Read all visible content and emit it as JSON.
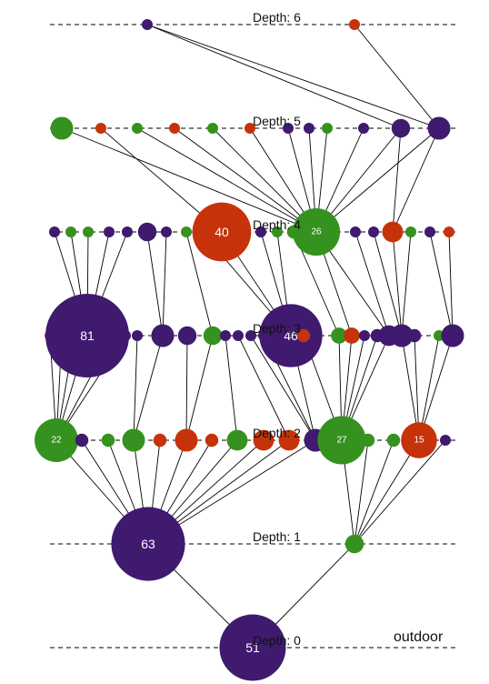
{
  "corner_label": "outdoor",
  "colors": {
    "purple": "#3f1a6e",
    "green": "#35921f",
    "red": "#c63209"
  },
  "levels": [
    {
      "label": "Depth: 0"
    },
    {
      "label": "Depth: 1"
    },
    {
      "label": "Depth: 2"
    },
    {
      "label": "Depth: 3"
    },
    {
      "label": "Depth: 4"
    },
    {
      "label": "Depth: 5"
    },
    {
      "label": "Depth: 6"
    }
  ],
  "nodes": [
    {
      "id": "d0a",
      "level": 0,
      "color": "purple",
      "size": 51,
      "label": "51"
    },
    {
      "id": "d1a",
      "level": 1,
      "color": "purple",
      "size": 63,
      "label": "63"
    },
    {
      "id": "d1b",
      "level": 1,
      "color": "green",
      "size": 4,
      "label": ""
    },
    {
      "id": "d2a",
      "level": 2,
      "color": "green",
      "size": 22,
      "label": "22"
    },
    {
      "id": "d2b",
      "level": 2,
      "color": "purple",
      "size": 2,
      "label": ""
    },
    {
      "id": "d2c",
      "level": 2,
      "color": "green",
      "size": 2,
      "label": ""
    },
    {
      "id": "d2d",
      "level": 2,
      "color": "green",
      "size": 6,
      "label": ""
    },
    {
      "id": "d2e",
      "level": 2,
      "color": "red",
      "size": 2,
      "label": ""
    },
    {
      "id": "d2f",
      "level": 2,
      "color": "red",
      "size": 6,
      "label": ""
    },
    {
      "id": "d2g",
      "level": 2,
      "color": "red",
      "size": 2,
      "label": ""
    },
    {
      "id": "d2h",
      "level": 2,
      "color": "green",
      "size": 5,
      "label": ""
    },
    {
      "id": "d2i",
      "level": 2,
      "color": "red",
      "size": 5,
      "label": ""
    },
    {
      "id": "d2j",
      "level": 2,
      "color": "red",
      "size": 5,
      "label": ""
    },
    {
      "id": "d2k",
      "level": 2,
      "color": "purple",
      "size": 6,
      "label": ""
    },
    {
      "id": "d2l",
      "level": 2,
      "color": "green",
      "size": 27,
      "label": "27"
    },
    {
      "id": "d2m",
      "level": 2,
      "color": "green",
      "size": 2,
      "label": ""
    },
    {
      "id": "d2n",
      "level": 2,
      "color": "green",
      "size": 2,
      "label": ""
    },
    {
      "id": "d2o",
      "level": 2,
      "color": "red",
      "size": 15,
      "label": "15"
    },
    {
      "id": "d2p",
      "level": 2,
      "color": "purple",
      "size": 1,
      "label": ""
    },
    {
      "id": "d3a",
      "level": 3,
      "color": "red",
      "size": 1,
      "label": ""
    },
    {
      "id": "d3b",
      "level": 3,
      "color": "red",
      "size": 1,
      "label": ""
    },
    {
      "id": "d3c",
      "level": 3,
      "color": "green",
      "size": 1,
      "label": ""
    },
    {
      "id": "d3d",
      "level": 3,
      "color": "purple",
      "size": 81,
      "label": "81"
    },
    {
      "id": "d3e",
      "level": 3,
      "color": "purple",
      "size": 1,
      "label": ""
    },
    {
      "id": "d3f",
      "level": 3,
      "color": "purple",
      "size": 1,
      "label": ""
    },
    {
      "id": "d3g",
      "level": 3,
      "color": "purple",
      "size": 1,
      "label": ""
    },
    {
      "id": "d3h",
      "level": 3,
      "color": "purple",
      "size": 6,
      "label": ""
    },
    {
      "id": "d3i",
      "level": 3,
      "color": "purple",
      "size": 4,
      "label": ""
    },
    {
      "id": "d3j",
      "level": 3,
      "color": "green",
      "size": 4,
      "label": ""
    },
    {
      "id": "d3k",
      "level": 3,
      "color": "purple",
      "size": 1,
      "label": ""
    },
    {
      "id": "d3l",
      "level": 3,
      "color": "purple",
      "size": 1,
      "label": ""
    },
    {
      "id": "d3m",
      "level": 3,
      "color": "purple",
      "size": 1,
      "label": ""
    },
    {
      "id": "d3n",
      "level": 3,
      "color": "purple",
      "size": 1,
      "label": ""
    },
    {
      "id": "d3o",
      "level": 3,
      "color": "purple",
      "size": 46,
      "label": "46"
    },
    {
      "id": "d3p",
      "level": 3,
      "color": "red",
      "size": 2,
      "label": ""
    },
    {
      "id": "d3q",
      "level": 3,
      "color": "green",
      "size": 3,
      "label": ""
    },
    {
      "id": "d3r",
      "level": 3,
      "color": "red",
      "size": 3,
      "label": ""
    },
    {
      "id": "d3s",
      "level": 3,
      "color": "purple",
      "size": 1,
      "label": ""
    },
    {
      "id": "d3t",
      "level": 3,
      "color": "purple",
      "size": 2,
      "label": ""
    },
    {
      "id": "d3u",
      "level": 3,
      "color": "purple",
      "size": 5,
      "label": ""
    },
    {
      "id": "d3v",
      "level": 3,
      "color": "purple",
      "size": 6,
      "label": ""
    },
    {
      "id": "d3w",
      "level": 3,
      "color": "purple",
      "size": 2,
      "label": ""
    },
    {
      "id": "d3x",
      "level": 3,
      "color": "green",
      "size": 1,
      "label": ""
    },
    {
      "id": "d3y",
      "level": 3,
      "color": "purple",
      "size": 6,
      "label": ""
    },
    {
      "id": "d4a",
      "level": 4,
      "color": "purple",
      "size": 1,
      "label": ""
    },
    {
      "id": "d4b",
      "level": 4,
      "color": "green",
      "size": 1,
      "label": ""
    },
    {
      "id": "d4c",
      "level": 4,
      "color": "green",
      "size": 1,
      "label": ""
    },
    {
      "id": "d4d",
      "level": 4,
      "color": "purple",
      "size": 1,
      "label": ""
    },
    {
      "id": "d4e",
      "level": 4,
      "color": "purple",
      "size": 1,
      "label": ""
    },
    {
      "id": "d4f",
      "level": 4,
      "color": "purple",
      "size": 4,
      "label": ""
    },
    {
      "id": "d4g",
      "level": 4,
      "color": "purple",
      "size": 1,
      "label": ""
    },
    {
      "id": "d4h",
      "level": 4,
      "color": "green",
      "size": 1,
      "label": ""
    },
    {
      "id": "d4i",
      "level": 4,
      "color": "green",
      "size": 4,
      "label": ""
    },
    {
      "id": "d4j",
      "level": 4,
      "color": "red",
      "size": 40,
      "label": "40"
    },
    {
      "id": "d4k",
      "level": 4,
      "color": "purple",
      "size": 1,
      "label": ""
    },
    {
      "id": "d4l",
      "level": 4,
      "color": "green",
      "size": 1,
      "label": ""
    },
    {
      "id": "d4m",
      "level": 4,
      "color": "green",
      "size": 2,
      "label": ""
    },
    {
      "id": "d4n",
      "level": 4,
      "color": "green",
      "size": 26,
      "label": "26"
    },
    {
      "id": "d4o",
      "level": 4,
      "color": "purple",
      "size": 1,
      "label": ""
    },
    {
      "id": "d4p",
      "level": 4,
      "color": "purple",
      "size": 1,
      "label": ""
    },
    {
      "id": "d4q",
      "level": 4,
      "color": "red",
      "size": 5,
      "label": ""
    },
    {
      "id": "d4r",
      "level": 4,
      "color": "green",
      "size": 1,
      "label": ""
    },
    {
      "id": "d4s",
      "level": 4,
      "color": "purple",
      "size": 1,
      "label": ""
    },
    {
      "id": "d4t",
      "level": 4,
      "color": "red",
      "size": 1,
      "label": ""
    },
    {
      "id": "d5a",
      "level": 5,
      "color": "green",
      "size": 6,
      "label": ""
    },
    {
      "id": "d5b",
      "level": 5,
      "color": "red",
      "size": 1,
      "label": ""
    },
    {
      "id": "d5c",
      "level": 5,
      "color": "green",
      "size": 1,
      "label": ""
    },
    {
      "id": "d5d",
      "level": 5,
      "color": "red",
      "size": 1,
      "label": ""
    },
    {
      "id": "d5e",
      "level": 5,
      "color": "green",
      "size": 1,
      "label": ""
    },
    {
      "id": "d5f",
      "level": 5,
      "color": "red",
      "size": 1,
      "label": ""
    },
    {
      "id": "d5g",
      "level": 5,
      "color": "purple",
      "size": 1,
      "label": ""
    },
    {
      "id": "d5h",
      "level": 5,
      "color": "purple",
      "size": 1,
      "label": ""
    },
    {
      "id": "d5i",
      "level": 5,
      "color": "green",
      "size": 1,
      "label": ""
    },
    {
      "id": "d5j",
      "level": 5,
      "color": "purple",
      "size": 1,
      "label": ""
    },
    {
      "id": "d5k",
      "level": 5,
      "color": "purple",
      "size": 4,
      "label": ""
    },
    {
      "id": "d5l",
      "level": 5,
      "color": "purple",
      "size": 6,
      "label": ""
    },
    {
      "id": "d6a",
      "level": 6,
      "color": "purple",
      "size": 1,
      "label": ""
    },
    {
      "id": "d6b",
      "level": 6,
      "color": "red",
      "size": 1,
      "label": ""
    }
  ],
  "edges": [
    [
      "d0a",
      "d1a"
    ],
    [
      "d0a",
      "d1b"
    ],
    [
      "d1a",
      "d2a"
    ],
    [
      "d1a",
      "d2b"
    ],
    [
      "d1a",
      "d2c"
    ],
    [
      "d1a",
      "d2d"
    ],
    [
      "d1a",
      "d2e"
    ],
    [
      "d1a",
      "d2f"
    ],
    [
      "d1a",
      "d2g"
    ],
    [
      "d1a",
      "d2h"
    ],
    [
      "d1a",
      "d2i"
    ],
    [
      "d1a",
      "d2j"
    ],
    [
      "d1a",
      "d2k"
    ],
    [
      "d1b",
      "d2l"
    ],
    [
      "d1b",
      "d2m"
    ],
    [
      "d1b",
      "d2n"
    ],
    [
      "d1b",
      "d2o"
    ],
    [
      "d1b",
      "d2p"
    ],
    [
      "d2a",
      "d3a"
    ],
    [
      "d2a",
      "d3b"
    ],
    [
      "d2a",
      "d3c"
    ],
    [
      "d2a",
      "d3d"
    ],
    [
      "d2a",
      "d3e"
    ],
    [
      "d2a",
      "d3f"
    ],
    [
      "d2d",
      "d3g"
    ],
    [
      "d2d",
      "d3h"
    ],
    [
      "d2f",
      "d3i"
    ],
    [
      "d2f",
      "d3j"
    ],
    [
      "d2h",
      "d3k"
    ],
    [
      "d2j",
      "d3l"
    ],
    [
      "d2k",
      "d3m"
    ],
    [
      "d2k",
      "d3n"
    ],
    [
      "d2k",
      "d3o"
    ],
    [
      "d2l",
      "d3p"
    ],
    [
      "d2l",
      "d3q"
    ],
    [
      "d2l",
      "d3r"
    ],
    [
      "d2l",
      "d3s"
    ],
    [
      "d2l",
      "d3t"
    ],
    [
      "d2l",
      "d3u"
    ],
    [
      "d2o",
      "d3v"
    ],
    [
      "d2o",
      "d3w"
    ],
    [
      "d2o",
      "d3x"
    ],
    [
      "d2o",
      "d3y"
    ],
    [
      "d3d",
      "d4a"
    ],
    [
      "d3d",
      "d4b"
    ],
    [
      "d3d",
      "d4c"
    ],
    [
      "d3d",
      "d4d"
    ],
    [
      "d3d",
      "d4e"
    ],
    [
      "d3h",
      "d4f"
    ],
    [
      "d3h",
      "d4g"
    ],
    [
      "d3j",
      "d4h"
    ],
    [
      "d3o",
      "d4i"
    ],
    [
      "d3o",
      "d4j"
    ],
    [
      "d3o",
      "d4k"
    ],
    [
      "d3o",
      "d4l"
    ],
    [
      "d3q",
      "d4m"
    ],
    [
      "d3r",
      "d4n"
    ],
    [
      "d3u",
      "d4n"
    ],
    [
      "d3u",
      "d4o"
    ],
    [
      "d3v",
      "d4p"
    ],
    [
      "d3v",
      "d4q"
    ],
    [
      "d3v",
      "d4r"
    ],
    [
      "d3y",
      "d4s"
    ],
    [
      "d3y",
      "d4t"
    ],
    [
      "d4n",
      "d5a"
    ],
    [
      "d4n",
      "d5c"
    ],
    [
      "d4n",
      "d5d"
    ],
    [
      "d4n",
      "d5e"
    ],
    [
      "d4n",
      "d5f"
    ],
    [
      "d4n",
      "d5g"
    ],
    [
      "d4n",
      "d5h"
    ],
    [
      "d4n",
      "d5i"
    ],
    [
      "d4n",
      "d5j"
    ],
    [
      "d4n",
      "d5k"
    ],
    [
      "d4n",
      "d5l"
    ],
    [
      "d4j",
      "d5b"
    ],
    [
      "d4q",
      "d5l"
    ],
    [
      "d4q",
      "d5k"
    ],
    [
      "d5l",
      "d6a"
    ],
    [
      "d5k",
      "d6a"
    ],
    [
      "d5l",
      "d6b"
    ]
  ]
}
